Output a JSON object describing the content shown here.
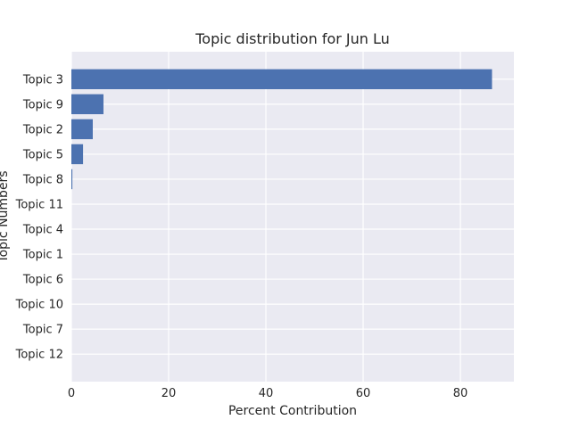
{
  "chart_data": {
    "type": "bar",
    "orientation": "horizontal",
    "title": "Topic distribution for Jun Lu",
    "xlabel": "Percent Contribution",
    "ylabel": "Topic Numbers",
    "categories": [
      "Topic 3",
      "Topic 9",
      "Topic 2",
      "Topic 5",
      "Topic 8",
      "Topic 11",
      "Topic 4",
      "Topic 1",
      "Topic 6",
      "Topic 10",
      "Topic 7",
      "Topic 12"
    ],
    "values": [
      86.5,
      6.6,
      4.4,
      2.4,
      0.2,
      0,
      0,
      0,
      0,
      0,
      0,
      0
    ],
    "xlim": [
      0,
      91
    ],
    "xticks": [
      0,
      20,
      40,
      60,
      80
    ],
    "grid": true,
    "colors": {
      "bar": "#4c72b0",
      "plot_background": "#eaeaf2",
      "grid": "#ffffff",
      "text": "#262626"
    }
  }
}
